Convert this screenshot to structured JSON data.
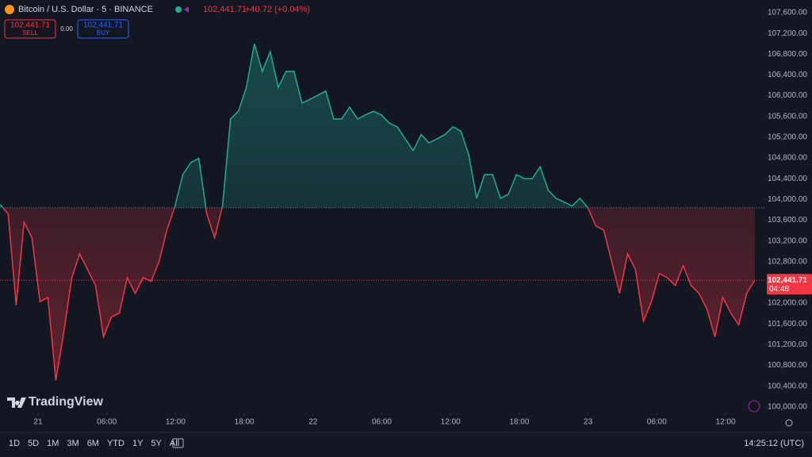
{
  "header": {
    "symbol": "Bitcoin / U.S. Dollar · 5 · BINANCE",
    "last": "102,441.71",
    "change": "+40.72 (+0.04%)"
  },
  "trade": {
    "sell_price": "102,441.71",
    "sell": "SELL",
    "spread": "0.00",
    "buy_price": "102,441.71",
    "buy": "BUY"
  },
  "logo": "TradingView",
  "toolbar": {
    "ranges": [
      "1D",
      "5D",
      "1M",
      "3M",
      "6M",
      "YTD",
      "1Y",
      "5Y",
      "All"
    ],
    "clock": "14:25:12 (UTC)"
  },
  "chart_data": {
    "type": "line",
    "baseline": 103840,
    "color_above": "#22ab94",
    "color_below": "#f23645",
    "x": [
      -3.3,
      -2.61,
      -1.91,
      -1.22,
      -0.53,
      0.17,
      0.86,
      1.55,
      2.24,
      2.94,
      3.63,
      4.32,
      5.02,
      5.71,
      6.4,
      7.1,
      7.79,
      8.48,
      9.17,
      9.87,
      10.56,
      11.25,
      11.95,
      12.64,
      13.33,
      14.03,
      14.72,
      15.41,
      16.1,
      16.8,
      17.49,
      18.18,
      18.88,
      19.57,
      20.26,
      20.96,
      21.65,
      22.34,
      23.03,
      23.73,
      24.42,
      25.11,
      25.81,
      26.5,
      27.19,
      27.89,
      28.58,
      29.27,
      29.96,
      30.66,
      31.35,
      32.04,
      32.74,
      33.43,
      34.12,
      34.82,
      35.51,
      36.2,
      36.89,
      37.59,
      38.28,
      38.97,
      39.67,
      40.36,
      41.05,
      41.75,
      42.44,
      43.13,
      43.82,
      44.52,
      45.21,
      45.9,
      46.6,
      47.29,
      47.98,
      48.68,
      49.37,
      50.06,
      50.75,
      51.45,
      52.14,
      52.83,
      53.53,
      54.22,
      54.91,
      55.61,
      56.3,
      56.99,
      57.68,
      58.38,
      59.07,
      59.76,
      60.46,
      61.15,
      61.84,
      62.54
    ],
    "values": [
      103900,
      103720,
      101960,
      103560,
      103260,
      102030,
      102110,
      100510,
      101420,
      102490,
      102950,
      102650,
      102340,
      101350,
      101730,
      101810,
      102490,
      102190,
      102490,
      102420,
      102800,
      103410,
      103870,
      104480,
      104710,
      104790,
      103720,
      103260,
      103870,
      105550,
      105700,
      106160,
      107000,
      106470,
      106850,
      106160,
      106470,
      106470,
      105860,
      105930,
      106010,
      106090,
      105550,
      105550,
      105780,
      105550,
      105630,
      105700,
      105630,
      105470,
      105400,
      105170,
      104940,
      105250,
      105090,
      105170,
      105250,
      105400,
      105320,
      104860,
      104020,
      104480,
      104480,
      104020,
      104100,
      104480,
      104400,
      104400,
      104630,
      104180,
      104020,
      103950,
      103870,
      104020,
      103840,
      103490,
      103410,
      102800,
      102190,
      102950,
      102650,
      101650,
      102030,
      102570,
      102490,
      102340,
      102720,
      102340,
      102190,
      101880,
      101350,
      102110,
      101810,
      101580,
      102190,
      102441.71
    ],
    "xlim": [
      -3.32,
      63.46
    ],
    "xticks": [
      {
        "value": 0,
        "label": "21"
      },
      {
        "value": 6,
        "label": "06:00"
      },
      {
        "value": 12,
        "label": "12:00"
      },
      {
        "value": 18,
        "label": "18:00"
      },
      {
        "value": 24,
        "label": "22"
      },
      {
        "value": 30,
        "label": "06:00"
      },
      {
        "value": 36,
        "label": "12:00"
      },
      {
        "value": 42,
        "label": "18:00"
      },
      {
        "value": 48,
        "label": "23"
      },
      {
        "value": 54,
        "label": "06:00"
      },
      {
        "value": 60,
        "label": "12:00"
      }
    ],
    "ylim": [
      99890,
      107845
    ],
    "yticks": [
      {
        "value": 100000,
        "label": "100,000.00"
      },
      {
        "value": 100400,
        "label": "100,400.00"
      },
      {
        "value": 100800,
        "label": "100,800.00"
      },
      {
        "value": 101200,
        "label": "101,200.00"
      },
      {
        "value": 101600,
        "label": "101,600.00"
      },
      {
        "value": 102000,
        "label": "102,000.00"
      },
      {
        "value": 102400,
        "label": "102,400.00"
      },
      {
        "value": 102800,
        "label": "102,800.00"
      },
      {
        "value": 103200,
        "label": "103,200.00"
      },
      {
        "value": 103600,
        "label": "103,600.00"
      },
      {
        "value": 104000,
        "label": "104,000.00"
      },
      {
        "value": 104400,
        "label": "104,400.00"
      },
      {
        "value": 104800,
        "label": "104,800.00"
      },
      {
        "value": 105200,
        "label": "105,200.00"
      },
      {
        "value": 105600,
        "label": "105,600.00"
      },
      {
        "value": 106000,
        "label": "106,000.00"
      },
      {
        "value": 106400,
        "label": "106,400.00"
      },
      {
        "value": 106800,
        "label": "106,800.00"
      },
      {
        "value": 107200,
        "label": "107,200.00"
      },
      {
        "value": 107600,
        "label": "107,600.00"
      }
    ],
    "last_price": {
      "value": 102441.71,
      "label": "102,441.71"
    },
    "countdown": "04:48"
  }
}
